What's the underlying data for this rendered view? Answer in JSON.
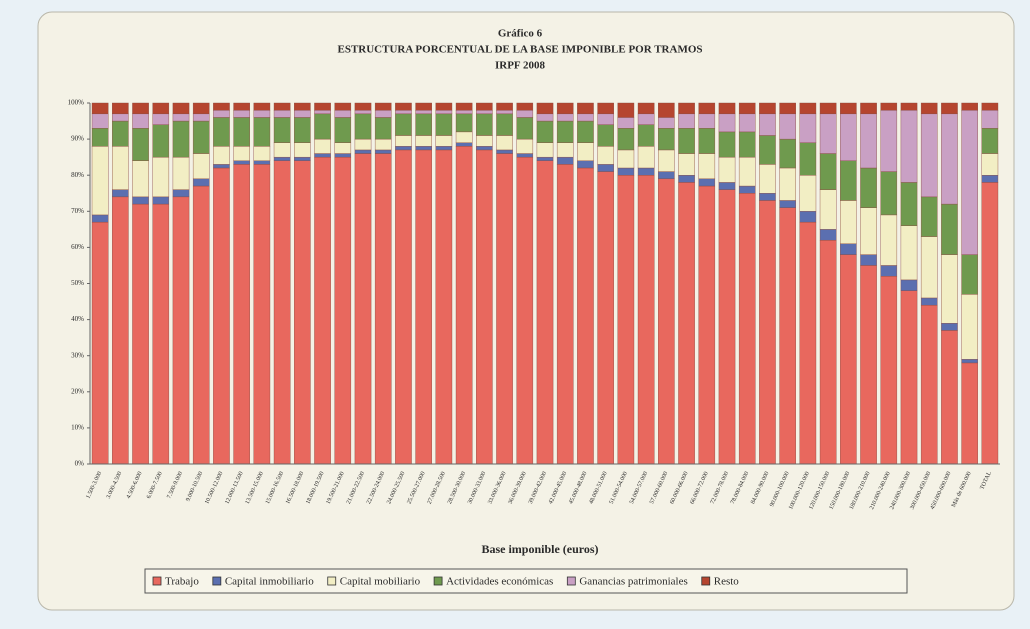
{
  "chart_data": {
    "type": "stacked_bar",
    "title": "Gráfico 6",
    "subtitle": "ESTRUCTURA PORCENTUAL DE LA BASE IMPONIBLE POR TRAMOS",
    "subtitle2": "IRPF 2008",
    "x_label": "Base imponible (euros)",
    "categories": [
      "1.500-3.000",
      "3.000-4.500",
      "4.500-6.000",
      "6.000-7.500",
      "7.500-9.000",
      "9.000-10.500",
      "10.500-12.000",
      "12.000-13.500",
      "13.500-15.000",
      "15.000-16.500",
      "16.500-18.000",
      "18.000-19.500",
      "19.500-21.000",
      "21.000-22.500",
      "22.500-24.000",
      "24.000-25.500",
      "25.500-27.000",
      "27.000-28.500",
      "28.500-30.000",
      "30.000-33.000",
      "33.000-36.000",
      "36.000-39.000",
      "39.000-42.000",
      "42.000-45.000",
      "45.000-48.000",
      "48.000-51.000",
      "51.000-54.000",
      "54.000-57.000",
      "57.000-60.000",
      "60.000-66.000",
      "66.000-72.000",
      "72.000-78.000",
      "78.000-84.000",
      "84.000-90.000",
      "90.000-100.000",
      "100.000-120.000",
      "120.000-150.000",
      "150.000-180.000",
      "180.000-210.000",
      "210.000-240.000",
      "240.000-300.000",
      "300.000-450.000",
      "450.000-600.000",
      "Más de 600.000",
      "TOTAL"
    ],
    "series": [
      {
        "name": "Trabajo",
        "color": "#e8685e",
        "values": [
          67,
          74,
          72,
          72,
          74,
          77,
          82,
          83,
          83,
          84,
          84,
          85,
          85,
          86,
          86,
          87,
          87,
          87,
          88,
          87,
          86,
          85,
          84,
          83,
          82,
          81,
          80,
          80,
          79,
          78,
          77,
          76,
          75,
          73,
          71,
          67,
          62,
          58,
          55,
          52,
          48,
          44,
          37,
          28,
          78
        ]
      },
      {
        "name": "Capital inmobiliario",
        "color": "#5b6fb0",
        "values": [
          2,
          2,
          2,
          2,
          2,
          2,
          1,
          1,
          1,
          1,
          1,
          1,
          1,
          1,
          1,
          1,
          1,
          1,
          1,
          1,
          1,
          1,
          1,
          2,
          2,
          2,
          2,
          2,
          2,
          2,
          2,
          2,
          2,
          2,
          2,
          3,
          3,
          3,
          3,
          3,
          3,
          2,
          2,
          1,
          2
        ]
      },
      {
        "name": "Capital mobiliario",
        "color": "#f2eec4",
        "values": [
          19,
          12,
          10,
          11,
          9,
          7,
          5,
          4,
          4,
          4,
          4,
          4,
          3,
          3,
          3,
          3,
          3,
          3,
          3,
          3,
          4,
          4,
          4,
          4,
          5,
          5,
          5,
          6,
          6,
          6,
          7,
          7,
          8,
          8,
          9,
          10,
          11,
          12,
          13,
          14,
          15,
          17,
          19,
          18,
          6
        ]
      },
      {
        "name": "Actividades económicas",
        "color": "#6f9a4e",
        "values": [
          5,
          7,
          9,
          9,
          10,
          9,
          8,
          8,
          8,
          7,
          7,
          7,
          7,
          7,
          6,
          6,
          6,
          6,
          5,
          6,
          6,
          6,
          6,
          6,
          6,
          6,
          6,
          6,
          6,
          7,
          7,
          7,
          7,
          8,
          8,
          9,
          10,
          11,
          11,
          12,
          12,
          11,
          14,
          11,
          7
        ]
      },
      {
        "name": "Ganancias patrimoniales",
        "color": "#c9a0c4",
        "values": [
          4,
          2,
          4,
          3,
          2,
          2,
          2,
          2,
          2,
          2,
          2,
          1,
          2,
          1,
          2,
          1,
          1,
          1,
          1,
          1,
          1,
          2,
          2,
          2,
          2,
          3,
          3,
          3,
          3,
          4,
          4,
          5,
          5,
          6,
          7,
          8,
          11,
          13,
          15,
          17,
          20,
          23,
          25,
          40,
          5
        ]
      },
      {
        "name": "Resto",
        "color": "#b5452f",
        "values": [
          3,
          3,
          3,
          3,
          3,
          3,
          2,
          2,
          2,
          2,
          2,
          2,
          2,
          2,
          2,
          2,
          2,
          2,
          2,
          2,
          2,
          2,
          3,
          3,
          3,
          3,
          4,
          3,
          4,
          3,
          3,
          3,
          3,
          3,
          3,
          3,
          3,
          3,
          3,
          2,
          2,
          3,
          3,
          2,
          2
        ]
      }
    ],
    "ylim": [
      0,
      100
    ],
    "yticks": [
      {
        "value": 0,
        "label": "0%"
      },
      {
        "value": 10,
        "label": "10%"
      },
      {
        "value": 20,
        "label": "20%"
      },
      {
        "value": 30,
        "label": "30%"
      },
      {
        "value": 40,
        "label": "40%"
      },
      {
        "value": 50,
        "label": "50%"
      },
      {
        "value": 60,
        "label": "60%"
      },
      {
        "value": 70,
        "label": "70%"
      },
      {
        "value": 80,
        "label": "80%"
      },
      {
        "value": 90,
        "label": "90%"
      },
      {
        "value": 100,
        "label": "100%"
      }
    ]
  }
}
